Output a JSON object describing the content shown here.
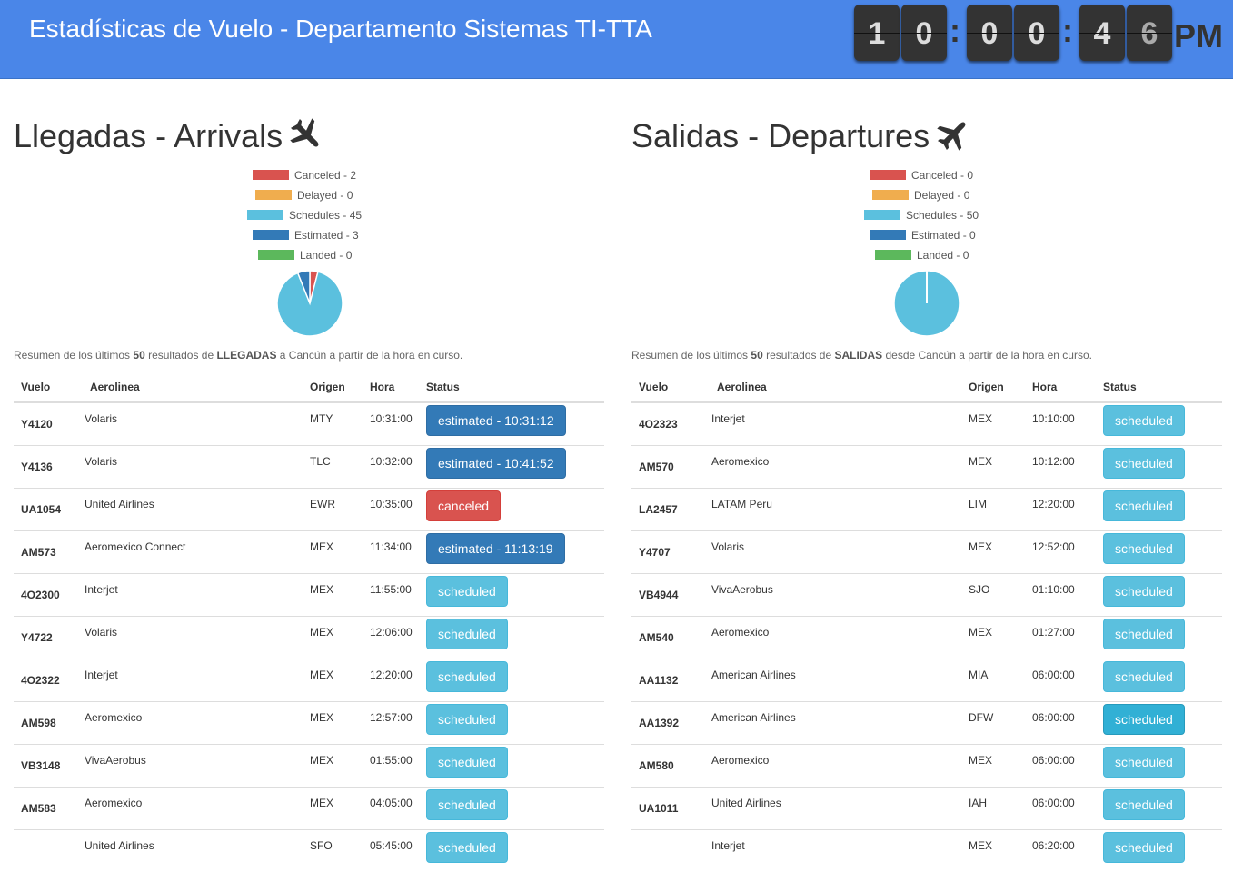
{
  "header": {
    "title": "Estadísticas de Vuelo - Departamento Sistemas TI-TTA"
  },
  "clock": {
    "digits": [
      "1",
      "0",
      "0",
      "0",
      "4",
      "6"
    ],
    "separator": ":",
    "ampm": "PM"
  },
  "colors": {
    "canceled": "#d9534f",
    "delayed": "#f0ad4e",
    "schedules": "#5bc0de",
    "estimated": "#337ab7",
    "landed": "#5cb85c",
    "header": "#4a86e8"
  },
  "arrivals": {
    "title": "Llegadas - Arrivals",
    "legend": [
      {
        "key": "canceled",
        "label": "Canceled - 2",
        "value": 2
      },
      {
        "key": "delayed",
        "label": "Delayed - 0",
        "value": 0
      },
      {
        "key": "schedules",
        "label": "Schedules - 45",
        "value": 45
      },
      {
        "key": "estimated",
        "label": "Estimated - 3",
        "value": 3
      },
      {
        "key": "landed",
        "label": "Landed - 0",
        "value": 0
      }
    ],
    "summary": {
      "pre": "Resumen de los últimos ",
      "count": "50",
      "mid": " resultados de ",
      "type": "LLEGADAS",
      "post": " a Cancún a partir de la hora en curso."
    },
    "columns": [
      "Vuelo",
      "Aerolinea",
      "Origen",
      "Hora",
      "Status"
    ],
    "rows": [
      {
        "vuelo": "Y4120",
        "aerolinea": "Volaris",
        "lugar": "MTY",
        "hora": "10:31:00",
        "status": "estimated - 10:31:12",
        "type": "estimated"
      },
      {
        "vuelo": "Y4136",
        "aerolinea": "Volaris",
        "lugar": "TLC",
        "hora": "10:32:00",
        "status": "estimated - 10:41:52",
        "type": "estimated"
      },
      {
        "vuelo": "UA1054",
        "aerolinea": "United Airlines",
        "lugar": "EWR",
        "hora": "10:35:00",
        "status": "canceled",
        "type": "canceled"
      },
      {
        "vuelo": "AM573",
        "aerolinea": "Aeromexico Connect",
        "lugar": "MEX",
        "hora": "11:34:00",
        "status": "estimated - 11:13:19",
        "type": "estimated"
      },
      {
        "vuelo": "4O2300",
        "aerolinea": "Interjet",
        "lugar": "MEX",
        "hora": "11:55:00",
        "status": "scheduled",
        "type": "scheduled"
      },
      {
        "vuelo": "Y4722",
        "aerolinea": "Volaris",
        "lugar": "MEX",
        "hora": "12:06:00",
        "status": "scheduled",
        "type": "scheduled"
      },
      {
        "vuelo": "4O2322",
        "aerolinea": "Interjet",
        "lugar": "MEX",
        "hora": "12:20:00",
        "status": "scheduled",
        "type": "scheduled"
      },
      {
        "vuelo": "AM598",
        "aerolinea": "Aeromexico",
        "lugar": "MEX",
        "hora": "12:57:00",
        "status": "scheduled",
        "type": "scheduled"
      },
      {
        "vuelo": "VB3148",
        "aerolinea": "VivaAerobus",
        "lugar": "MEX",
        "hora": "01:55:00",
        "status": "scheduled",
        "type": "scheduled"
      },
      {
        "vuelo": "AM583",
        "aerolinea": "Aeromexico",
        "lugar": "MEX",
        "hora": "04:05:00",
        "status": "scheduled",
        "type": "scheduled"
      },
      {
        "vuelo": "",
        "aerolinea": "United Airlines",
        "lugar": "SFO",
        "hora": "05:45:00",
        "status": "scheduled",
        "type": "scheduled"
      }
    ]
  },
  "departures": {
    "title": "Salidas - Departures",
    "legend": [
      {
        "key": "canceled",
        "label": "Canceled - 0",
        "value": 0
      },
      {
        "key": "delayed",
        "label": "Delayed - 0",
        "value": 0
      },
      {
        "key": "schedules",
        "label": "Schedules - 50",
        "value": 50
      },
      {
        "key": "estimated",
        "label": "Estimated - 0",
        "value": 0
      },
      {
        "key": "landed",
        "label": "Landed - 0",
        "value": 0
      }
    ],
    "summary": {
      "pre": "Resumen de los últimos ",
      "count": "50",
      "mid": " resultados de ",
      "type": "SALIDAS",
      "post": " desde Cancún a partir de la hora en curso."
    },
    "columns": [
      "Vuelo",
      "Aerolinea",
      "Origen",
      "Hora",
      "Status"
    ],
    "rows": [
      {
        "vuelo": "4O2323",
        "aerolinea": "Interjet",
        "lugar": "MEX",
        "hora": "10:10:00",
        "status": "scheduled",
        "type": "scheduled"
      },
      {
        "vuelo": "AM570",
        "aerolinea": "Aeromexico",
        "lugar": "MEX",
        "hora": "10:12:00",
        "status": "scheduled",
        "type": "scheduled"
      },
      {
        "vuelo": "LA2457",
        "aerolinea": "LATAM Peru",
        "lugar": "LIM",
        "hora": "12:20:00",
        "status": "scheduled",
        "type": "scheduled"
      },
      {
        "vuelo": "Y4707",
        "aerolinea": "Volaris",
        "lugar": "MEX",
        "hora": "12:52:00",
        "status": "scheduled",
        "type": "scheduled"
      },
      {
        "vuelo": "VB4944",
        "aerolinea": "VivaAerobus",
        "lugar": "SJO",
        "hora": "01:10:00",
        "status": "scheduled",
        "type": "scheduled"
      },
      {
        "vuelo": "AM540",
        "aerolinea": "Aeromexico",
        "lugar": "MEX",
        "hora": "01:27:00",
        "status": "scheduled",
        "type": "scheduled"
      },
      {
        "vuelo": "AA1132",
        "aerolinea": "American Airlines",
        "lugar": "MIA",
        "hora": "06:00:00",
        "status": "scheduled",
        "type": "scheduled"
      },
      {
        "vuelo": "AA1392",
        "aerolinea": "American Airlines",
        "lugar": "DFW",
        "hora": "06:00:00",
        "status": "scheduled",
        "type": "scheduled hover"
      },
      {
        "vuelo": "AM580",
        "aerolinea": "Aeromexico",
        "lugar": "MEX",
        "hora": "06:00:00",
        "status": "scheduled",
        "type": "scheduled"
      },
      {
        "vuelo": "UA1011",
        "aerolinea": "United Airlines",
        "lugar": "IAH",
        "hora": "06:00:00",
        "status": "scheduled",
        "type": "scheduled"
      },
      {
        "vuelo": "",
        "aerolinea": "Interjet",
        "lugar": "MEX",
        "hora": "06:20:00",
        "status": "scheduled",
        "type": "scheduled"
      }
    ]
  }
}
